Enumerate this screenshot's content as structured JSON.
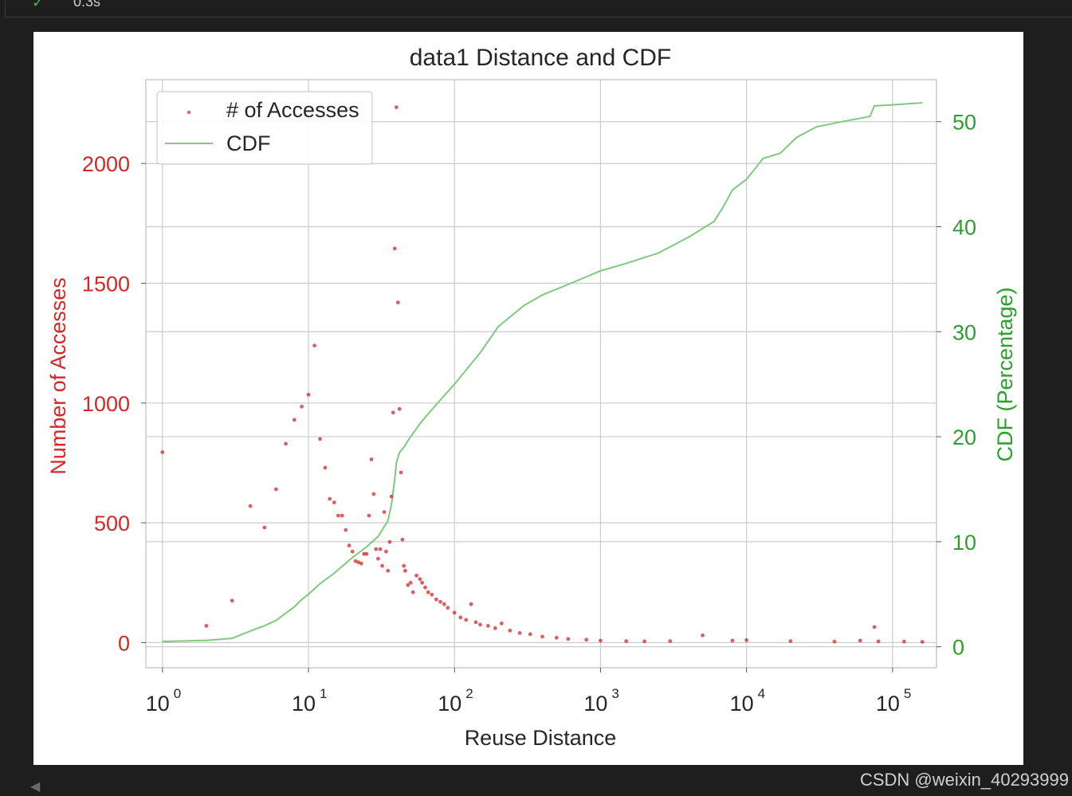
{
  "cell": {
    "exec_time": "0.3s",
    "check_icon": "check-icon"
  },
  "watermark": "CSDN @weixin_40293999",
  "colors": {
    "scatter": "#d62728",
    "cdf": "#7fc97f",
    "left_axis_text": "#d62728",
    "right_axis_text": "#2ca02c",
    "grid": "#cccccc"
  },
  "chart_data": {
    "type": "scatter",
    "title": "data1 Distance and CDF",
    "xlabel": "Reuse Distance",
    "ylabel": "Number of Accesses",
    "y2label": "CDF (Percentage)",
    "xscale": "log",
    "xlim": [
      0.77,
      200000
    ],
    "ylim": [
      -105,
      2350
    ],
    "y2lim": [
      -2,
      54
    ],
    "x_ticks": [
      {
        "base": "10",
        "exp": "0",
        "value": 1
      },
      {
        "base": "10",
        "exp": "1",
        "value": 10
      },
      {
        "base": "10",
        "exp": "2",
        "value": 100
      },
      {
        "base": "10",
        "exp": "3",
        "value": 1000
      },
      {
        "base": "10",
        "exp": "4",
        "value": 10000
      },
      {
        "base": "10",
        "exp": "5",
        "value": 100000
      }
    ],
    "y_ticks": [
      0,
      500,
      1000,
      1500,
      2000
    ],
    "y2_ticks": [
      0,
      10,
      20,
      30,
      40,
      50
    ],
    "grid": true,
    "legend": {
      "placement": "upper-left",
      "entries": [
        "# of Accesses",
        "CDF"
      ]
    },
    "series": [
      {
        "name": "# of Accesses",
        "axis": "left",
        "kind": "scatter",
        "points": [
          [
            1,
            795
          ],
          [
            2,
            70
          ],
          [
            3,
            175
          ],
          [
            4,
            570
          ],
          [
            5,
            480
          ],
          [
            6,
            640
          ],
          [
            7,
            830
          ],
          [
            8,
            930
          ],
          [
            9,
            985
          ],
          [
            10,
            1035
          ],
          [
            11,
            1240
          ],
          [
            12,
            850
          ],
          [
            13,
            730
          ],
          [
            14,
            600
          ],
          [
            15,
            585
          ],
          [
            16,
            530
          ],
          [
            17,
            530
          ],
          [
            18,
            470
          ],
          [
            19,
            405
          ],
          [
            20,
            380
          ],
          [
            21,
            340
          ],
          [
            22,
            335
          ],
          [
            23,
            330
          ],
          [
            24,
            370
          ],
          [
            25,
            370
          ],
          [
            26,
            530
          ],
          [
            27,
            765
          ],
          [
            28,
            620
          ],
          [
            29,
            390
          ],
          [
            30,
            350
          ],
          [
            31,
            390
          ],
          [
            32,
            320
          ],
          [
            33,
            545
          ],
          [
            34,
            380
          ],
          [
            35,
            300
          ],
          [
            36,
            420
          ],
          [
            37,
            610
          ],
          [
            38,
            960
          ],
          [
            39,
            1645
          ],
          [
            40,
            2235
          ],
          [
            41,
            1420
          ],
          [
            42,
            975
          ],
          [
            43,
            710
          ],
          [
            44,
            430
          ],
          [
            45,
            320
          ],
          [
            46,
            300
          ],
          [
            48,
            240
          ],
          [
            50,
            250
          ],
          [
            52,
            210
          ],
          [
            55,
            280
          ],
          [
            58,
            265
          ],
          [
            60,
            250
          ],
          [
            63,
            230
          ],
          [
            66,
            210
          ],
          [
            70,
            200
          ],
          [
            75,
            180
          ],
          [
            80,
            170
          ],
          [
            85,
            160
          ],
          [
            90,
            145
          ],
          [
            100,
            125
          ],
          [
            110,
            105
          ],
          [
            120,
            95
          ],
          [
            130,
            160
          ],
          [
            140,
            85
          ],
          [
            150,
            75
          ],
          [
            170,
            70
          ],
          [
            190,
            60
          ],
          [
            210,
            80
          ],
          [
            240,
            50
          ],
          [
            280,
            40
          ],
          [
            330,
            35
          ],
          [
            400,
            25
          ],
          [
            500,
            20
          ],
          [
            600,
            15
          ],
          [
            800,
            12
          ],
          [
            1000,
            8
          ],
          [
            1500,
            6
          ],
          [
            2000,
            5
          ],
          [
            3000,
            6
          ],
          [
            5000,
            30
          ],
          [
            8000,
            8
          ],
          [
            10000,
            10
          ],
          [
            20000,
            6
          ],
          [
            40000,
            4
          ],
          [
            60000,
            8
          ],
          [
            75000,
            65
          ],
          [
            80000,
            5
          ],
          [
            120000,
            4
          ],
          [
            160000,
            3
          ]
        ]
      },
      {
        "name": "CDF",
        "axis": "right",
        "kind": "line",
        "points": [
          [
            1,
            0.5
          ],
          [
            2,
            0.6
          ],
          [
            3,
            0.8
          ],
          [
            4,
            1.5
          ],
          [
            5,
            2.0
          ],
          [
            6,
            2.5
          ],
          [
            7,
            3.2
          ],
          [
            8,
            3.8
          ],
          [
            9,
            4.5
          ],
          [
            10,
            5.0
          ],
          [
            12,
            6.0
          ],
          [
            15,
            7.0
          ],
          [
            20,
            8.5
          ],
          [
            25,
            9.5
          ],
          [
            30,
            10.5
          ],
          [
            35,
            12.0
          ],
          [
            37,
            13.5
          ],
          [
            39,
            16.0
          ],
          [
            40,
            17.5
          ],
          [
            42,
            18.5
          ],
          [
            45,
            19.0
          ],
          [
            50,
            20.0
          ],
          [
            60,
            21.5
          ],
          [
            80,
            23.5
          ],
          [
            100,
            25.0
          ],
          [
            150,
            28.0
          ],
          [
            200,
            30.5
          ],
          [
            300,
            32.5
          ],
          [
            400,
            33.5
          ],
          [
            600,
            34.5
          ],
          [
            1000,
            35.8
          ],
          [
            1500,
            36.5
          ],
          [
            2500,
            37.5
          ],
          [
            4000,
            39.0
          ],
          [
            6000,
            40.5
          ],
          [
            7000,
            42.0
          ],
          [
            8000,
            43.5
          ],
          [
            10000,
            44.5
          ],
          [
            13000,
            46.5
          ],
          [
            17000,
            47.0
          ],
          [
            22000,
            48.5
          ],
          [
            30000,
            49.5
          ],
          [
            45000,
            50.0
          ],
          [
            70000,
            50.5
          ],
          [
            75000,
            51.5
          ],
          [
            100000,
            51.6
          ],
          [
            160000,
            51.8
          ]
        ]
      }
    ]
  }
}
